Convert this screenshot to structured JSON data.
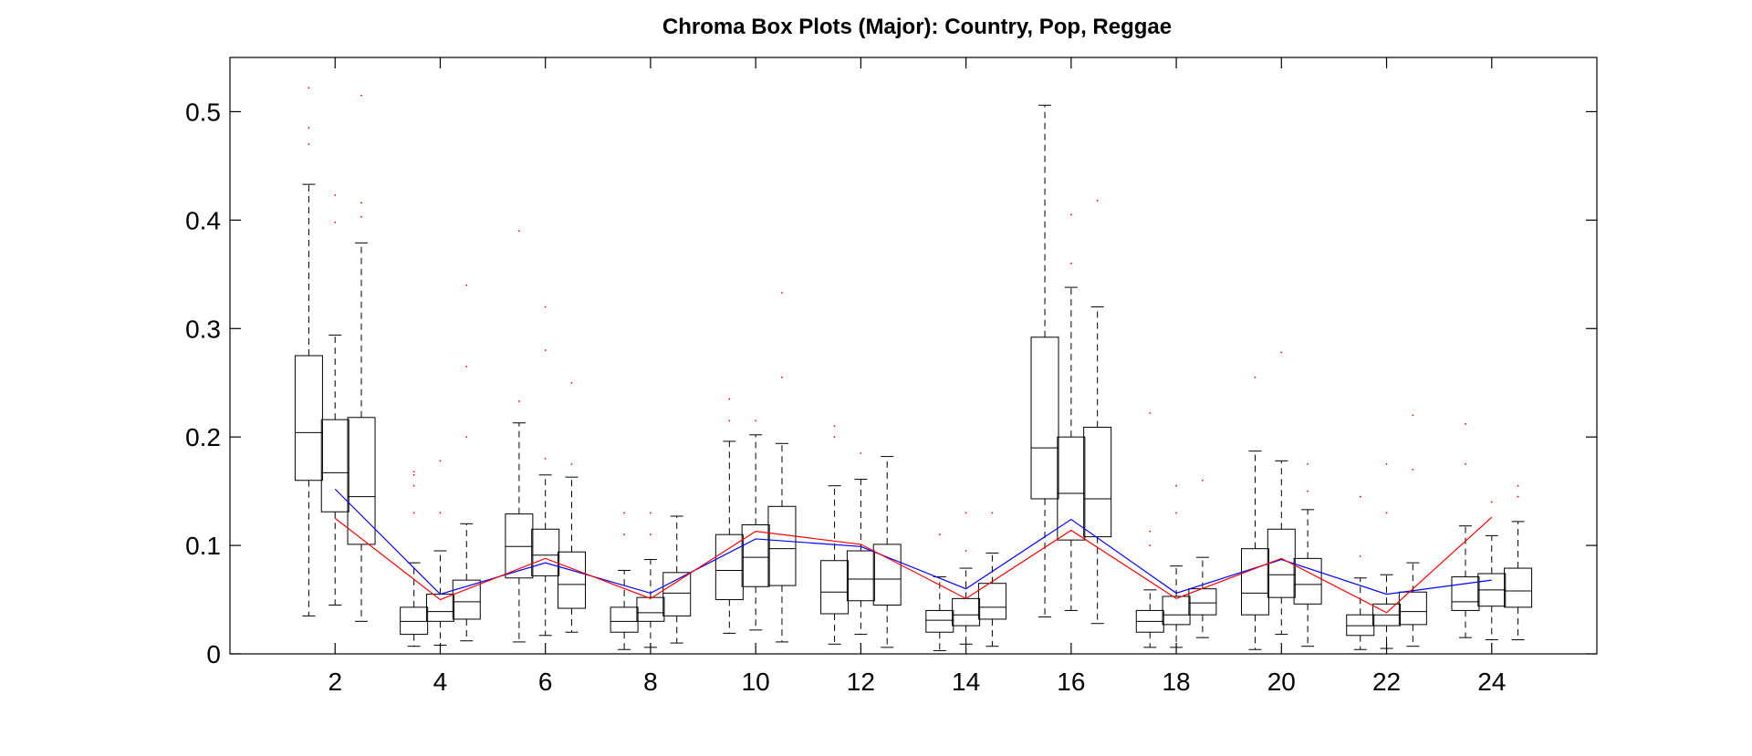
{
  "chart_data": {
    "type": "box",
    "title": "Chroma Box Plots (Major): Country, Pop, Reggae",
    "xlabel": "",
    "ylabel": "",
    "xlim": [
      0,
      26
    ],
    "ylim": [
      0,
      0.55
    ],
    "x_ticks": [
      "2",
      "4",
      "6",
      "8",
      "10",
      "12",
      "14",
      "16",
      "18",
      "20",
      "22",
      "24"
    ],
    "y_ticks": [
      "0",
      "0.1",
      "0.2",
      "0.3",
      "0.4",
      "0.5"
    ],
    "grid": false,
    "legend": "none",
    "box_groups": [
      {
        "x": 2,
        "boxes": [
          {
            "whisker_low": 0.035,
            "q1": 0.16,
            "median": 0.204,
            "q3": 0.275,
            "whisker_high": 0.433,
            "outliers": [
              0.47,
              0.485,
              0.522
            ]
          },
          {
            "whisker_low": 0.045,
            "q1": 0.131,
            "median": 0.167,
            "q3": 0.216,
            "whisker_high": 0.294,
            "outliers": [
              0.398,
              0.423
            ]
          },
          {
            "whisker_low": 0.03,
            "q1": 0.101,
            "median": 0.145,
            "q3": 0.218,
            "whisker_high": 0.379,
            "outliers": [
              0.403,
              0.416,
              0.515
            ]
          }
        ]
      },
      {
        "x": 4,
        "boxes": [
          {
            "whisker_low": 0.007,
            "q1": 0.018,
            "median": 0.03,
            "q3": 0.043,
            "whisker_high": 0.084,
            "outliers": [
              0.13,
              0.155,
              0.165,
              0.168
            ]
          },
          {
            "whisker_low": 0.008,
            "q1": 0.03,
            "median": 0.039,
            "q3": 0.055,
            "whisker_high": 0.095,
            "outliers": [
              0.13,
              0.178
            ]
          },
          {
            "whisker_low": 0.012,
            "q1": 0.032,
            "median": 0.048,
            "q3": 0.068,
            "whisker_high": 0.12,
            "outliers": [
              0.2,
              0.265,
              0.34
            ]
          }
        ]
      },
      {
        "x": 6,
        "boxes": [
          {
            "whisker_low": 0.011,
            "q1": 0.07,
            "median": 0.099,
            "q3": 0.129,
            "whisker_high": 0.213,
            "outliers": [
              0.233,
              0.39
            ]
          },
          {
            "whisker_low": 0.017,
            "q1": 0.072,
            "median": 0.091,
            "q3": 0.115,
            "whisker_high": 0.165,
            "outliers": [
              0.18,
              0.28,
              0.32
            ]
          },
          {
            "whisker_low": 0.02,
            "q1": 0.042,
            "median": 0.064,
            "q3": 0.094,
            "whisker_high": 0.163,
            "outliers": [
              0.175,
              0.25
            ]
          }
        ]
      },
      {
        "x": 8,
        "boxes": [
          {
            "whisker_low": 0.004,
            "q1": 0.02,
            "median": 0.03,
            "q3": 0.043,
            "whisker_high": 0.077,
            "outliers": [
              0.11,
              0.13
            ]
          },
          {
            "whisker_low": 0.006,
            "q1": 0.03,
            "median": 0.038,
            "q3": 0.052,
            "whisker_high": 0.087,
            "outliers": [
              0.11,
              0.13
            ]
          },
          {
            "whisker_low": 0.01,
            "q1": 0.035,
            "median": 0.056,
            "q3": 0.075,
            "whisker_high": 0.127,
            "outliers": []
          }
        ]
      },
      {
        "x": 10,
        "boxes": [
          {
            "whisker_low": 0.019,
            "q1": 0.05,
            "median": 0.077,
            "q3": 0.11,
            "whisker_high": 0.196,
            "outliers": [
              0.215,
              0.235
            ]
          },
          {
            "whisker_low": 0.022,
            "q1": 0.062,
            "median": 0.089,
            "q3": 0.119,
            "whisker_high": 0.202,
            "outliers": [
              0.215
            ]
          },
          {
            "whisker_low": 0.011,
            "q1": 0.063,
            "median": 0.097,
            "q3": 0.136,
            "whisker_high": 0.194,
            "outliers": [
              0.255,
              0.333
            ]
          }
        ]
      },
      {
        "x": 12,
        "boxes": [
          {
            "whisker_low": 0.009,
            "q1": 0.037,
            "median": 0.057,
            "q3": 0.086,
            "whisker_high": 0.155,
            "outliers": [
              0.2,
              0.21
            ]
          },
          {
            "whisker_low": 0.018,
            "q1": 0.049,
            "median": 0.069,
            "q3": 0.095,
            "whisker_high": 0.161,
            "outliers": [
              0.185
            ]
          },
          {
            "whisker_low": 0.006,
            "q1": 0.045,
            "median": 0.069,
            "q3": 0.101,
            "whisker_high": 0.182,
            "outliers": []
          }
        ]
      },
      {
        "x": 14,
        "boxes": [
          {
            "whisker_low": 0.003,
            "q1": 0.02,
            "median": 0.031,
            "q3": 0.04,
            "whisker_high": 0.071,
            "outliers": [
              0.11
            ]
          },
          {
            "whisker_low": 0.009,
            "q1": 0.026,
            "median": 0.036,
            "q3": 0.051,
            "whisker_high": 0.079,
            "outliers": [
              0.095,
              0.13
            ]
          },
          {
            "whisker_low": 0.007,
            "q1": 0.032,
            "median": 0.043,
            "q3": 0.065,
            "whisker_high": 0.093,
            "outliers": [
              0.13
            ]
          }
        ]
      },
      {
        "x": 16,
        "boxes": [
          {
            "whisker_low": 0.034,
            "q1": 0.143,
            "median": 0.19,
            "q3": 0.292,
            "whisker_high": 0.506,
            "outliers": []
          },
          {
            "whisker_low": 0.04,
            "q1": 0.105,
            "median": 0.148,
            "q3": 0.2,
            "whisker_high": 0.338,
            "outliers": [
              0.36,
              0.405
            ]
          },
          {
            "whisker_low": 0.028,
            "q1": 0.108,
            "median": 0.143,
            "q3": 0.209,
            "whisker_high": 0.32,
            "outliers": [
              0.418
            ]
          }
        ]
      },
      {
        "x": 18,
        "boxes": [
          {
            "whisker_low": 0.006,
            "q1": 0.02,
            "median": 0.03,
            "q3": 0.04,
            "whisker_high": 0.059,
            "outliers": [
              0.1,
              0.113,
              0.222
            ]
          },
          {
            "whisker_low": 0.006,
            "q1": 0.027,
            "median": 0.036,
            "q3": 0.053,
            "whisker_high": 0.081,
            "outliers": [
              0.13,
              0.155
            ]
          },
          {
            "whisker_low": 0.015,
            "q1": 0.036,
            "median": 0.047,
            "q3": 0.06,
            "whisker_high": 0.089,
            "outliers": [
              0.16
            ]
          }
        ]
      },
      {
        "x": 20,
        "boxes": [
          {
            "whisker_low": 0.004,
            "q1": 0.036,
            "median": 0.056,
            "q3": 0.097,
            "whisker_high": 0.187,
            "outliers": [
              0.255
            ]
          },
          {
            "whisker_low": 0.018,
            "q1": 0.052,
            "median": 0.073,
            "q3": 0.115,
            "whisker_high": 0.178,
            "outliers": [
              0.278
            ]
          },
          {
            "whisker_low": 0.007,
            "q1": 0.046,
            "median": 0.064,
            "q3": 0.088,
            "whisker_high": 0.133,
            "outliers": [
              0.15,
              0.175
            ]
          }
        ]
      },
      {
        "x": 22,
        "boxes": [
          {
            "whisker_low": 0.004,
            "q1": 0.017,
            "median": 0.026,
            "q3": 0.036,
            "whisker_high": 0.07,
            "outliers": [
              0.09,
              0.145
            ]
          },
          {
            "whisker_low": 0.005,
            "q1": 0.026,
            "median": 0.036,
            "q3": 0.046,
            "whisker_high": 0.073,
            "outliers": [
              0.13,
              0.175
            ]
          },
          {
            "whisker_low": 0.007,
            "q1": 0.027,
            "median": 0.039,
            "q3": 0.057,
            "whisker_high": 0.084,
            "outliers": [
              0.17,
              0.22
            ]
          }
        ]
      },
      {
        "x": 24,
        "boxes": [
          {
            "whisker_low": 0.015,
            "q1": 0.04,
            "median": 0.048,
            "q3": 0.071,
            "whisker_high": 0.118,
            "outliers": [
              0.175,
              0.212
            ]
          },
          {
            "whisker_low": 0.013,
            "q1": 0.044,
            "median": 0.059,
            "q3": 0.074,
            "whisker_high": 0.109,
            "outliers": [
              0.14
            ]
          },
          {
            "whisker_low": 0.013,
            "q1": 0.043,
            "median": 0.058,
            "q3": 0.079,
            "whisker_high": 0.122,
            "outliers": [
              0.145,
              0.155
            ]
          }
        ]
      }
    ],
    "series": [
      {
        "color": "#0000ff",
        "x": [
          2,
          4,
          6,
          8,
          10,
          12,
          14,
          16,
          18,
          20,
          22,
          24
        ],
        "values": [
          0.152,
          0.055,
          0.084,
          0.056,
          0.106,
          0.099,
          0.06,
          0.124,
          0.056,
          0.087,
          0.055,
          0.068
        ]
      },
      {
        "color": "#ff0000",
        "x": [
          2,
          4,
          6,
          8,
          10,
          12,
          14,
          16,
          18,
          20,
          22,
          24
        ],
        "values": [
          0.125,
          0.05,
          0.088,
          0.051,
          0.113,
          0.101,
          0.051,
          0.114,
          0.051,
          0.088,
          0.038,
          0.126
        ]
      }
    ],
    "colors": {
      "box": "#000000",
      "outlier": "#ff0000",
      "axes": "#000000"
    }
  }
}
